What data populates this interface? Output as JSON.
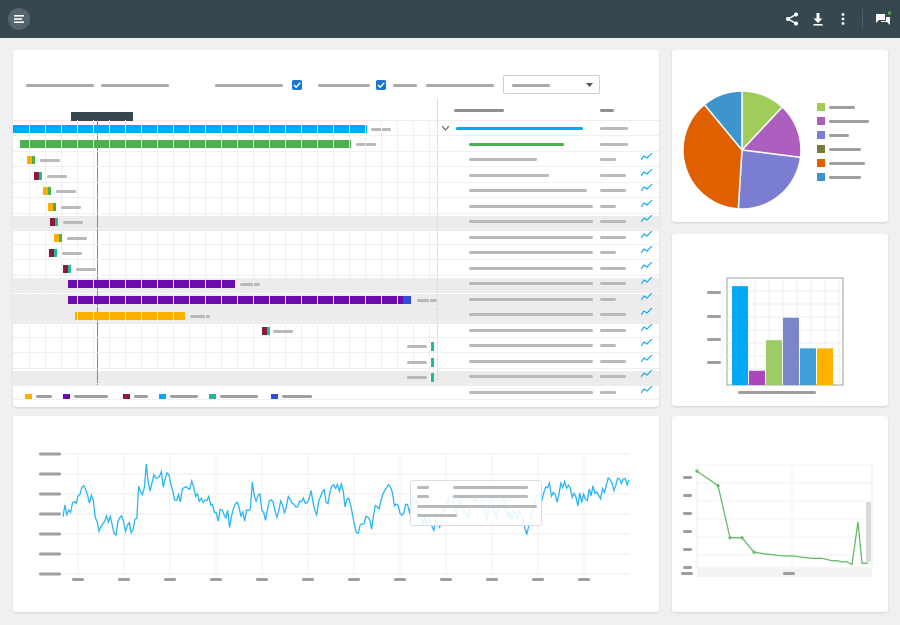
{
  "toolbar": {
    "menu_icon": "menu-icon",
    "share_icon": "share-icon",
    "download_icon": "download-icon",
    "more_icon": "more-vertical-icon",
    "chat_icon": "chat-icon"
  },
  "colors": {
    "topbar": "#37474f",
    "blue": "#03a9f4",
    "green": "#4caf50",
    "purple": "#6a0dad",
    "orange": "#fbb000",
    "maroon": "#8b1a3a",
    "teal": "#1abc9c",
    "indigo": "#2e4ddb",
    "checkbox": "#1976d2"
  },
  "gantt": {
    "legend": [
      {
        "color": "#fbb000"
      },
      {
        "color": "#6a0dad"
      },
      {
        "color": "#8b1a3a"
      },
      {
        "color": "#03a9f4"
      },
      {
        "color": "#1abc9c"
      },
      {
        "color": "#2e4ddb"
      }
    ]
  },
  "chart_data": [
    {
      "type": "pie",
      "slices": [
        {
          "value": 12,
          "color": "#a0cc5a"
        },
        {
          "value": 15,
          "color": "#ad5fbf"
        },
        {
          "value": 24,
          "color": "#7c7fd1"
        },
        {
          "value": 38,
          "color": "#e05f00"
        },
        {
          "value": 11,
          "color": "#3e95cd"
        }
      ]
    },
    {
      "type": "bar",
      "values": [
        97,
        14,
        44,
        66,
        36,
        36
      ],
      "colors": [
        "#03a9f4",
        "#ab47bc",
        "#9ccc65",
        "#7986cb",
        "#3f9fd6",
        "#ffb300"
      ],
      "ylim": [
        0,
        105
      ]
    },
    {
      "type": "line",
      "color": "#29b6f6",
      "ylim": [
        0,
        100
      ],
      "series_seed": 17
    },
    {
      "type": "line",
      "color": "#66bb6a",
      "values": [
        100,
        88,
        45,
        45,
        33,
        32,
        31,
        30,
        30,
        29,
        28,
        28,
        27,
        26,
        26,
        25,
        25,
        23,
        58,
        24,
        24
      ],
      "ylim": [
        20,
        105
      ]
    }
  ]
}
